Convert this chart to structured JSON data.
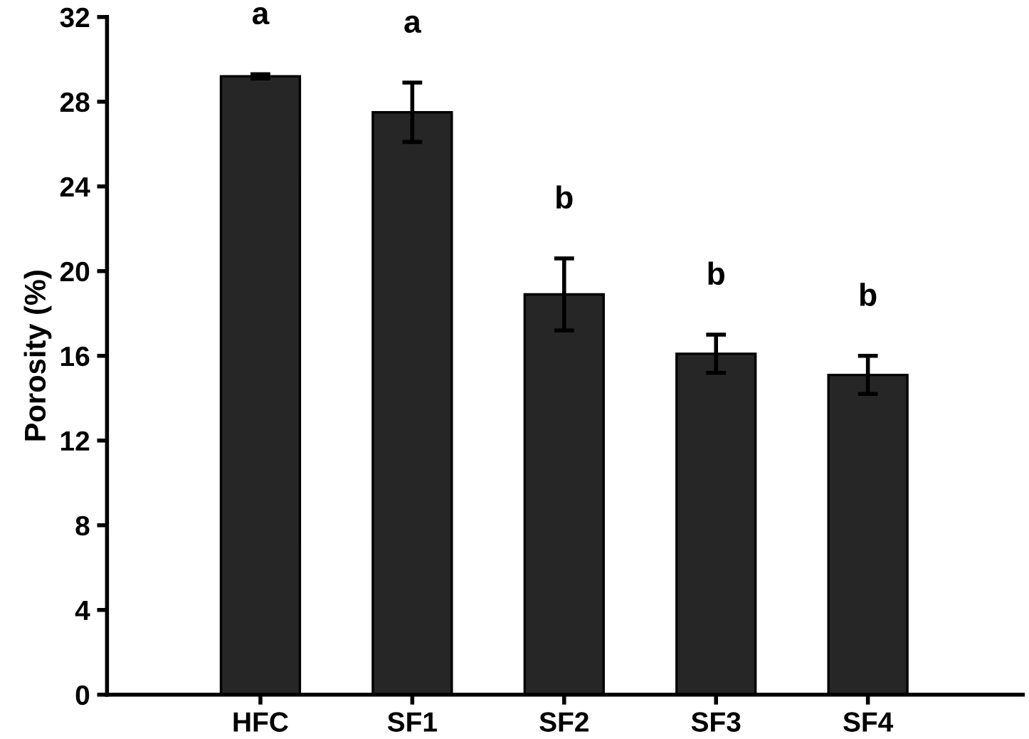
{
  "chart_data": {
    "type": "bar",
    "ylabel": "Porosity (%)",
    "categories": [
      "HFC",
      "SF1",
      "SF2",
      "SF3",
      "SF4"
    ],
    "values": [
      29.2,
      27.5,
      18.9,
      16.1,
      15.1
    ],
    "errors": [
      0.1,
      1.4,
      1.7,
      0.9,
      0.9
    ],
    "color": "#262626",
    "ylim": [
      0,
      32
    ],
    "yticks": [
      0,
      4,
      8,
      12,
      16,
      20,
      24,
      28,
      32
    ],
    "annotations": [
      "a",
      "a",
      "b",
      "b",
      "b"
    ]
  }
}
